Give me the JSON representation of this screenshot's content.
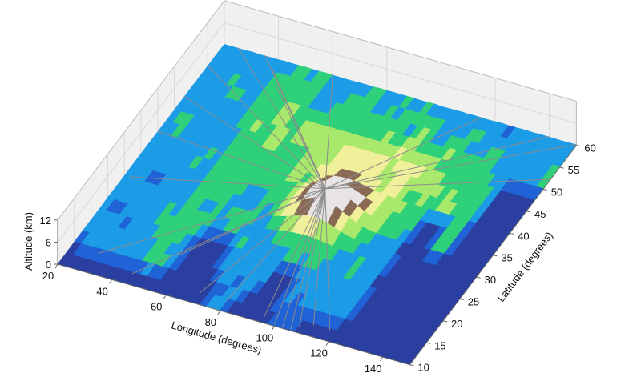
{
  "chart_data": {
    "type": "surface3d",
    "xlabel": "Longitude (degrees)",
    "ylabel": "Latitude (degrees)",
    "zlabel": "Altitude (km)",
    "xlim": [
      20,
      150
    ],
    "ylim": [
      10,
      60
    ],
    "zlim": [
      0,
      12
    ],
    "xticks": [
      "20",
      "40",
      "60",
      "80",
      "100",
      "120",
      "140"
    ],
    "yticks": [
      "10",
      "15",
      "20",
      "25",
      "30",
      "35",
      "40",
      "45",
      "50",
      "55",
      "60"
    ],
    "zticks": [
      "0",
      "6",
      "12"
    ],
    "grid": true,
    "colormap": [
      "#2b3fa0",
      "#1f63d6",
      "#1c9be6",
      "#2fd07a",
      "#a8e86a",
      "#f0ef9a",
      "#8a6a55",
      "#e8e4e6"
    ],
    "overlay_line_color": "#8c8c8c"
  }
}
